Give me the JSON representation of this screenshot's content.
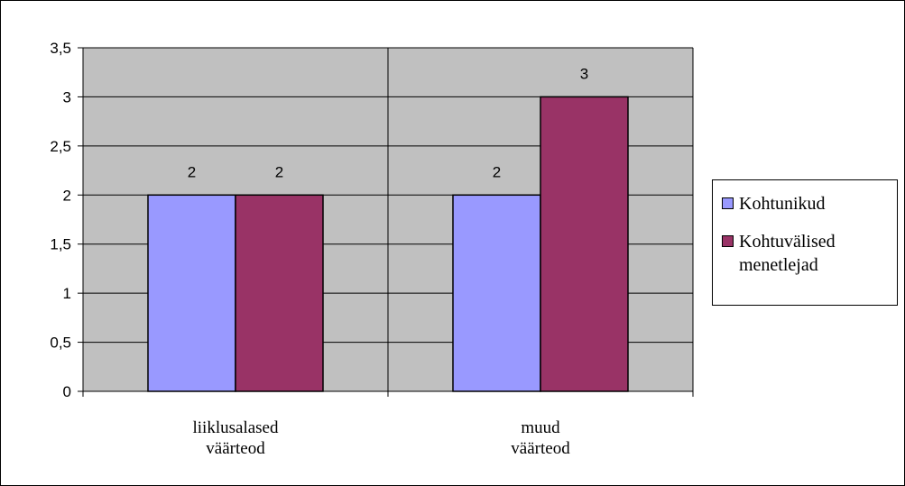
{
  "chart_data": {
    "type": "bar",
    "categories": [
      [
        "liiklusalased",
        "väärteod"
      ],
      [
        "muud",
        "väärteod"
      ]
    ],
    "series": [
      {
        "name": "Kohtunikud",
        "values": [
          2,
          2
        ],
        "color": "#9999ff",
        "labels": [
          "2",
          "2"
        ]
      },
      {
        "name": "Kohtuvälised menetlejad",
        "values": [
          2,
          3
        ],
        "color": "#993366",
        "labels": [
          "2",
          "3"
        ]
      }
    ],
    "ylim": [
      0,
      3.5
    ],
    "yticks": [
      "0",
      "0,5",
      "1",
      "1,5",
      "2",
      "2,5",
      "3",
      "3,5"
    ],
    "ytick_values": [
      0,
      0.5,
      1,
      1.5,
      2,
      2.5,
      3,
      3.5
    ],
    "grid": true,
    "plot_background": "#c0c0c0",
    "legend": {
      "position": "right",
      "lines": [
        [
          "Kohtunikud"
        ],
        [
          "Kohtuvälised",
          "menetlejad"
        ]
      ]
    }
  }
}
